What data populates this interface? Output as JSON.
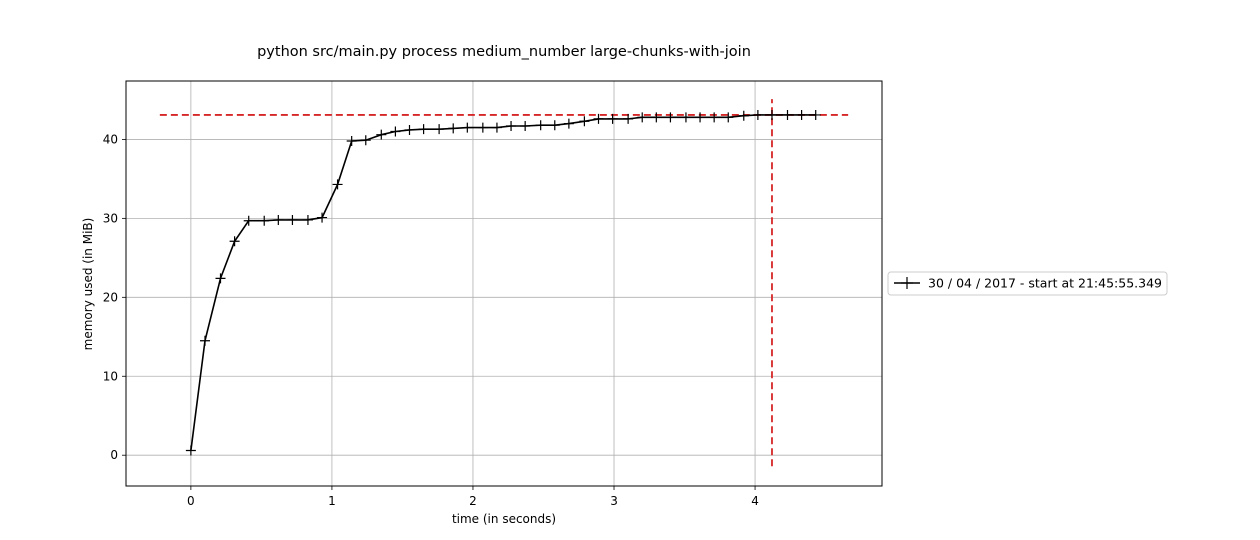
{
  "chart_data": {
    "type": "line",
    "title": "python src/main.py process medium_number large-chunks-with-join",
    "xlabel": "time (in seconds)",
    "ylabel": "memory used (in MiB)",
    "xlim": [
      -0.46,
      4.9
    ],
    "ylim": [
      -3.9,
      47.4
    ],
    "xticks": [
      0,
      1,
      2,
      3,
      4
    ],
    "yticks": [
      0,
      10,
      20,
      30,
      40
    ],
    "grid": true,
    "legend_placement": "outside-right",
    "series": [
      {
        "name": "30 / 04 / 2017 - start at 21:45:55.349",
        "color": "#000000",
        "marker": "+",
        "x": [
          0.0,
          0.1,
          0.21,
          0.31,
          0.41,
          0.52,
          0.62,
          0.72,
          0.83,
          0.93,
          1.04,
          1.14,
          1.24,
          1.35,
          1.45,
          1.55,
          1.65,
          1.76,
          1.86,
          1.96,
          2.07,
          2.17,
          2.27,
          2.37,
          2.48,
          2.58,
          2.68,
          2.79,
          2.89,
          2.99,
          3.1,
          3.2,
          3.3,
          3.4,
          3.51,
          3.61,
          3.71,
          3.81,
          3.92,
          4.02,
          4.12,
          4.23,
          4.33,
          4.43
        ],
        "y": [
          0.6,
          14.5,
          22.4,
          27.1,
          29.7,
          29.7,
          29.8,
          29.8,
          29.8,
          30.1,
          34.3,
          39.8,
          39.9,
          40.6,
          41.0,
          41.2,
          41.3,
          41.3,
          41.4,
          41.5,
          41.5,
          41.5,
          41.7,
          41.7,
          41.8,
          41.8,
          42.0,
          42.3,
          42.6,
          42.6,
          42.6,
          42.8,
          42.8,
          42.8,
          42.8,
          42.8,
          42.8,
          42.8,
          43.0,
          43.1,
          43.1,
          43.1,
          43.1,
          43.1
        ]
      }
    ],
    "reference_lines": [
      {
        "orientation": "horizontal",
        "value": 43.1,
        "from": -0.22,
        "to": 4.66,
        "color": "#d62728",
        "style": "dashed"
      },
      {
        "orientation": "vertical",
        "value": 4.12,
        "from": -1.4,
        "to": 45.1,
        "color": "#d62728",
        "style": "dashed"
      }
    ]
  }
}
